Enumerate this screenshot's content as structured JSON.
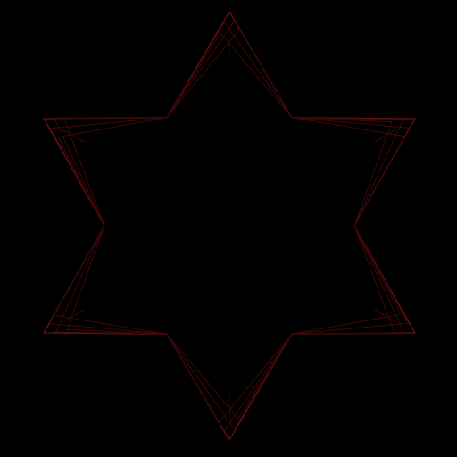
{
  "figure": {
    "shape": "six-pointed-star",
    "style": "nested-wireframe-outlines",
    "point_count": 6,
    "layer_count": 5,
    "background_color": "#000000",
    "stroke_color": "#6a0f0f",
    "stroke_color_dim": "#3d0808"
  }
}
